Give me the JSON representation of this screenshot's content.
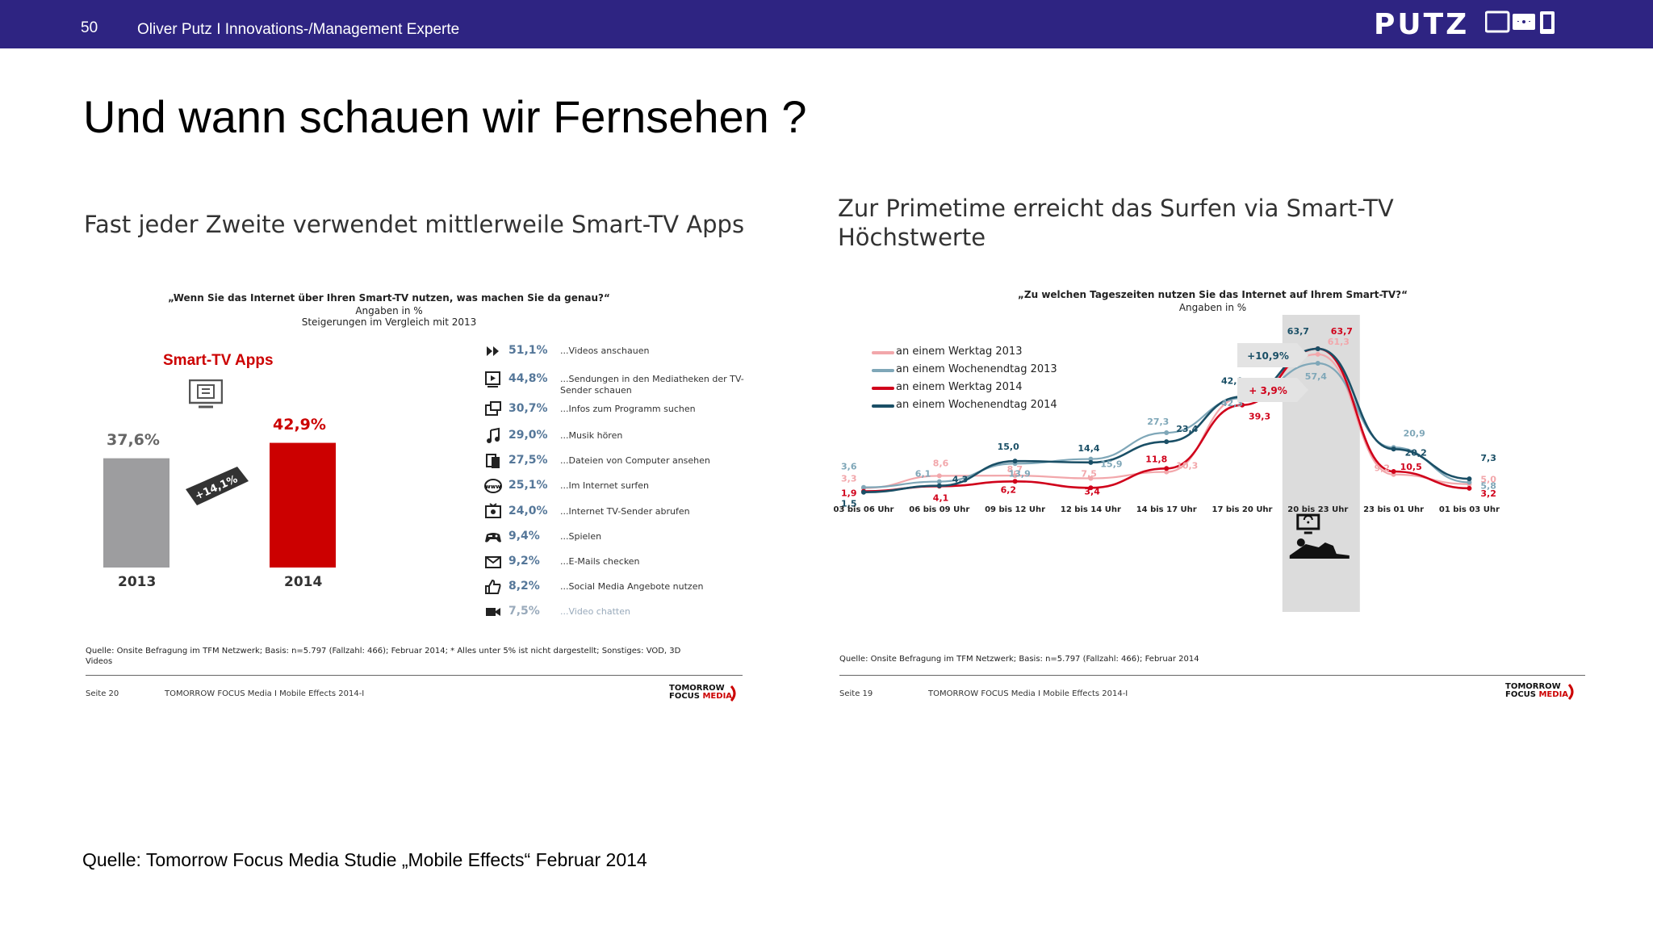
{
  "header": {
    "page_number": "50",
    "author": "Oliver Putz  I  Innovations-/Management Experte",
    "logo": "PUTZ"
  },
  "title": "Und wann schauen wir Fernsehen ?",
  "source": "Quelle: Tomorrow Focus Media Studie „Mobile Effects“ Februar 2014",
  "left_panel": {
    "heading": "Fast jeder Zweite verwendet mittlerweile Smart-TV Apps",
    "question": "„Wenn Sie das Internet über Ihren Smart-TV nutzen, was machen Sie da genau?“",
    "sub1": "Angaben in %",
    "sub2": "Steigerungen im Vergleich mit 2013",
    "apps_title": "Smart-TV Apps",
    "growth": "+14,1%",
    "source": "Quelle: Onsite Befragung im TFM Netzwerk; Basis: n=5.797 (Fallzahl: 466); Februar 2014; * Alles unter 5% ist nicht dargestellt; Sonstiges: VOD, 3D Videos",
    "seite": "Seite 20",
    "footer_center": "TOMORROW FOCUS Media  I  Mobile Effects 2014-I",
    "brand1": "TOMORROW",
    "brand2": "FOCUS",
    "brand3": "MEDIA"
  },
  "right_panel": {
    "heading1": "Zur Primetime erreicht das Surfen via Smart-TV",
    "heading2": "Höchstwerte",
    "question": "„Zu welchen Tageszeiten nutzen Sie das Internet auf Ihrem Smart-TV?“",
    "sub": "Angaben in %",
    "badge1": "+10,9%",
    "badge2": "+ 3,9%",
    "source": "Quelle: Onsite Befragung im TFM Netzwerk; Basis: n=5.797 (Fallzahl: 466); Februar 2014",
    "seite": "Seite 19",
    "footer_center": "TOMORROW FOCUS Media  I  Mobile Effects 2014-I",
    "brand1": "TOMORROW",
    "brand2": "FOCUS",
    "brand3": "MEDIA"
  },
  "chart_data": [
    {
      "type": "bar",
      "categories": [
        "2013",
        "2014"
      ],
      "values": [
        37.6,
        42.9
      ],
      "value_labels": [
        "37,6%",
        "42,9%"
      ],
      "colors": [
        "#9d9d9f",
        "#cc0000"
      ],
      "ylim": [
        0,
        50
      ]
    },
    {
      "type": "table",
      "rows": [
        {
          "value": "51,1%",
          "label": "...Videos anschauen",
          "icon": "fast-forward-icon"
        },
        {
          "value": "44,8%",
          "label": "...Sendungen in den Mediatheken der TV-Sender schauen",
          "icon": "play-screen-icon"
        },
        {
          "value": "30,7%",
          "label": "...Infos zum Programm suchen",
          "icon": "program-guide-icon"
        },
        {
          "value": "29,0%",
          "label": "...Musik hören",
          "icon": "music-note-icon"
        },
        {
          "value": "27,5%",
          "label": "...Dateien von Computer ansehen",
          "icon": "files-icon"
        },
        {
          "value": "25,1%",
          "label": "...Im Internet surfen",
          "icon": "www-icon"
        },
        {
          "value": "24,0%",
          "label": "...Internet TV-Sender abrufen",
          "icon": "tv-station-icon"
        },
        {
          "value": "9,4%",
          "label": "...Spielen",
          "icon": "gamepad-icon"
        },
        {
          "value": "9,2%",
          "label": "...E-Mails checken",
          "icon": "mail-icon"
        },
        {
          "value": "8,2%",
          "label": "...Social Media Angebote nutzen",
          "icon": "thumbs-up-icon"
        },
        {
          "value": "7,5%",
          "label": "...Video chatten",
          "icon": "video-camera-icon"
        }
      ]
    },
    {
      "type": "line",
      "categories": [
        "03 bis 06 Uhr",
        "06 bis 09 Uhr",
        "09 bis 12 Uhr",
        "12 bis 14 Uhr",
        "14 bis 17 Uhr",
        "17 bis 20 Uhr",
        "20 bis 23 Uhr",
        "23 bis 01 Uhr",
        "01 bis 03 Uhr"
      ],
      "ylim": [
        0,
        70
      ],
      "highlight_category": "20 bis 23 Uhr",
      "series": [
        {
          "name": "an einem Werktag 2013",
          "color": "#f2a7ab",
          "values": [
            3.3,
            8.6,
            8.7,
            7.5,
            10.3,
            42.6,
            61.3,
            9.2,
            5.0
          ],
          "labels": [
            "3,3",
            "8,6",
            "8,7",
            "7,5",
            "10,3",
            "42,6",
            "61,3",
            "9,2",
            "5,0"
          ]
        },
        {
          "name": "an einem Wochenendtag 2013",
          "color": "#7fa7b8",
          "values": [
            3.6,
            6.1,
            13.9,
            15.9,
            27.3,
            42.3,
            57.4,
            20.9,
            5.8
          ],
          "labels": [
            "3,6",
            "6,1",
            "13,9",
            "15,9",
            "27,3",
            "42,3",
            "57,4",
            "20,9",
            "5,8"
          ]
        },
        {
          "name": "an einem Werktag 2014",
          "color": "#d0021b",
          "values": [
            1.9,
            4.1,
            6.2,
            3.4,
            11.8,
            39.3,
            63.7,
            10.5,
            3.2
          ],
          "labels": [
            "1,9",
            "4,1",
            "6,2",
            "3,4",
            "11,8",
            "39,3",
            "63,7",
            "10,5",
            "3,2"
          ]
        },
        {
          "name": "an einem Wochenendtag 2014",
          "color": "#1a4f66",
          "values": [
            1.5,
            4.3,
            15.0,
            14.4,
            23.4,
            42.9,
            63.7,
            20.2,
            7.3
          ],
          "labels": [
            "1,5",
            "4,3",
            "15,0",
            "14,4",
            "23,4",
            "42,9",
            "63,7",
            "20,2",
            "7,3"
          ]
        }
      ]
    }
  ]
}
